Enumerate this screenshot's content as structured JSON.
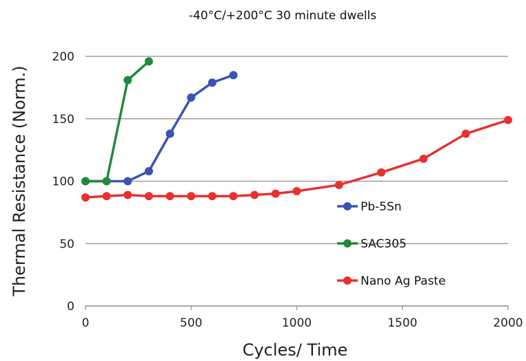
{
  "chart_data": {
    "type": "line",
    "title": "-40°C/+200°C    30 minute dwells",
    "xlabel": "Cycles/ Time",
    "ylabel": "Thermal Resistance (Norm.)",
    "xlim": [
      0,
      2000
    ],
    "ylim": [
      0,
      200
    ],
    "xticks": [
      0,
      500,
      1000,
      1500,
      2000
    ],
    "yticks": [
      0,
      50,
      100,
      150,
      200
    ],
    "grid": "horizontal",
    "legend_position": "right",
    "series": [
      {
        "name": "Pb-5Sn",
        "color": "#3a53b4",
        "points": [
          [
            0,
            100
          ],
          [
            100,
            100
          ],
          [
            200,
            100
          ],
          [
            300,
            108
          ],
          [
            400,
            138
          ],
          [
            500,
            167
          ],
          [
            600,
            179
          ],
          [
            700,
            185
          ]
        ]
      },
      {
        "name": "SAC305",
        "color": "#1f8a3c",
        "points": [
          [
            0,
            100
          ],
          [
            100,
            100
          ],
          [
            200,
            181
          ],
          [
            300,
            196
          ]
        ]
      },
      {
        "name": "Nano Ag Paste",
        "color": "#e8312f",
        "points": [
          [
            0,
            87
          ],
          [
            100,
            88
          ],
          [
            200,
            89
          ],
          [
            300,
            88
          ],
          [
            400,
            88
          ],
          [
            500,
            88
          ],
          [
            600,
            88
          ],
          [
            700,
            88
          ],
          [
            800,
            89
          ],
          [
            900,
            90
          ],
          [
            1000,
            92
          ],
          [
            1200,
            97
          ],
          [
            1400,
            107
          ],
          [
            1600,
            118
          ],
          [
            1800,
            138
          ],
          [
            2000,
            149
          ]
        ]
      }
    ]
  }
}
